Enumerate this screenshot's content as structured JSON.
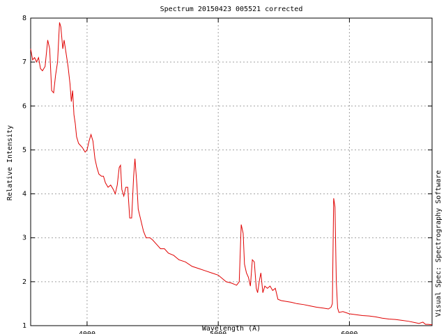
{
  "chart_data": {
    "type": "line",
    "title": "Spectrum 20150423 005521 corrected",
    "xlabel": "Wavelength (A)",
    "ylabel": "Relative Intensity",
    "annotation": "Visual Spec: Spectrography Software",
    "color": "#e00000",
    "grid": true,
    "xlim": [
      3570,
      6630
    ],
    "ylim": [
      1,
      8
    ],
    "xticks": [
      4000,
      5000,
      6000
    ],
    "yticks": [
      1,
      2,
      3,
      4,
      5,
      6,
      7,
      8
    ],
    "x": [
      3570,
      3585,
      3600,
      3615,
      3630,
      3645,
      3660,
      3680,
      3700,
      3715,
      3730,
      3745,
      3760,
      3775,
      3790,
      3800,
      3815,
      3825,
      3840,
      3855,
      3870,
      3880,
      3890,
      3900,
      3910,
      3920,
      3935,
      3950,
      3965,
      3985,
      4000,
      4015,
      4030,
      4045,
      4060,
      4075,
      4090,
      4110,
      4125,
      4140,
      4160,
      4180,
      4200,
      4215,
      4230,
      4245,
      4255,
      4265,
      4280,
      4295,
      4310,
      4325,
      4340,
      4355,
      4365,
      4380,
      4390,
      4410,
      4430,
      4450,
      4480,
      4500,
      4530,
      4560,
      4590,
      4620,
      4660,
      4700,
      4750,
      4800,
      4850,
      4900,
      4950,
      5000,
      5060,
      5100,
      5140,
      5160,
      5175,
      5190,
      5200,
      5215,
      5230,
      5245,
      5260,
      5275,
      5290,
      5300,
      5315,
      5325,
      5340,
      5355,
      5375,
      5395,
      5415,
      5435,
      5455,
      5480,
      5520,
      5560,
      5600,
      5650,
      5700,
      5750,
      5800,
      5840,
      5860,
      5870,
      5880,
      5890,
      5900,
      5910,
      5920,
      5950,
      6000,
      6050,
      6100,
      6150,
      6200,
      6250,
      6300,
      6350,
      6400,
      6450,
      6500,
      6530,
      6560,
      6580,
      6600,
      6630
    ],
    "values": [
      7.3,
      7.05,
      7.1,
      7.0,
      7.1,
      6.85,
      6.8,
      6.9,
      7.5,
      7.3,
      6.35,
      6.3,
      6.7,
      7.0,
      7.9,
      7.8,
      7.3,
      7.5,
      7.2,
      6.9,
      6.5,
      6.1,
      6.35,
      5.8,
      5.6,
      5.3,
      5.15,
      5.1,
      5.05,
      4.95,
      5.0,
      5.2,
      5.35,
      5.2,
      4.8,
      4.6,
      4.45,
      4.4,
      4.4,
      4.25,
      4.15,
      4.2,
      4.1,
      4.0,
      4.2,
      4.6,
      4.65,
      4.1,
      3.95,
      4.15,
      4.15,
      3.45,
      3.45,
      4.4,
      4.8,
      4.2,
      3.65,
      3.4,
      3.15,
      3.0,
      3.0,
      2.95,
      2.85,
      2.75,
      2.75,
      2.65,
      2.6,
      2.5,
      2.45,
      2.35,
      2.3,
      2.25,
      2.2,
      2.15,
      2.0,
      1.97,
      1.92,
      2.0,
      3.3,
      3.1,
      2.4,
      2.2,
      2.1,
      1.9,
      2.5,
      2.45,
      1.85,
      1.75,
      2.05,
      2.2,
      1.75,
      1.9,
      1.85,
      1.9,
      1.8,
      1.85,
      1.6,
      1.57,
      1.55,
      1.53,
      1.5,
      1.48,
      1.45,
      1.42,
      1.4,
      1.38,
      1.42,
      1.5,
      3.9,
      3.7,
      2.0,
      1.4,
      1.3,
      1.32,
      1.27,
      1.25,
      1.23,
      1.22,
      1.2,
      1.17,
      1.15,
      1.14,
      1.12,
      1.1,
      1.07,
      1.05,
      1.08,
      1.03,
      1.03,
      1.02
    ]
  }
}
